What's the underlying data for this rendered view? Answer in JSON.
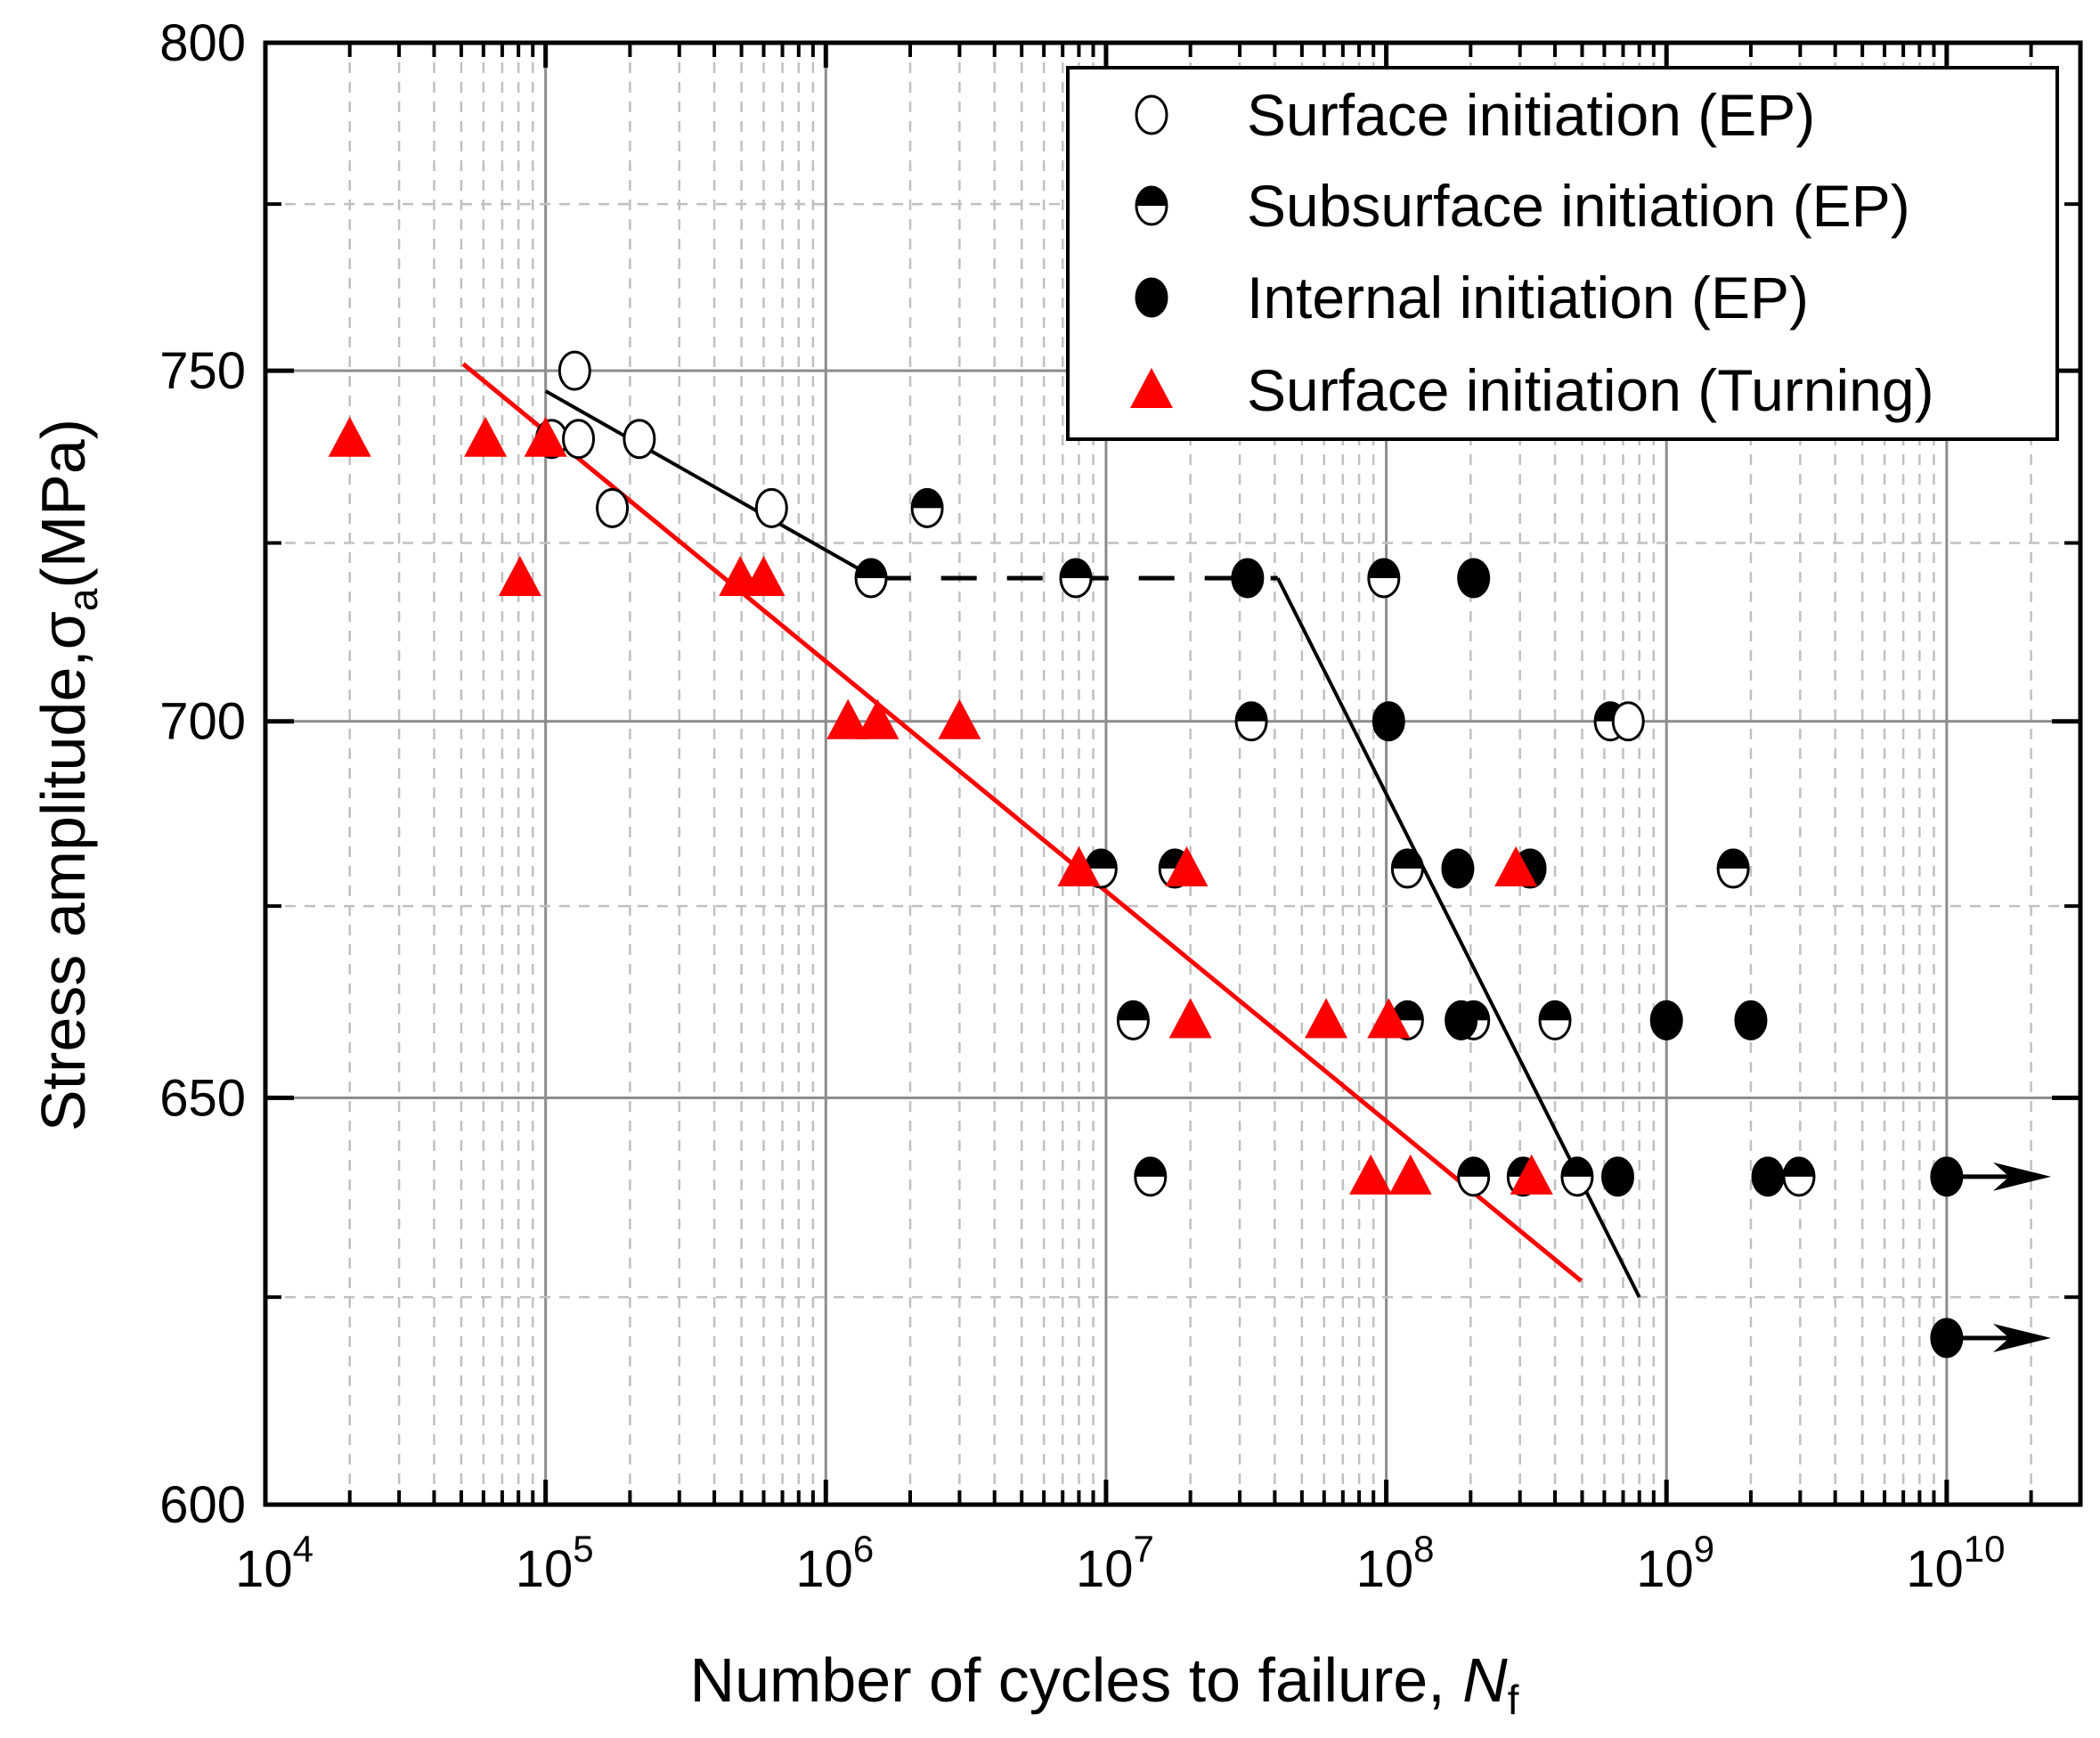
{
  "chart_data": {
    "type": "scatter",
    "title": "",
    "xlabel": "Number of cycles to failure, ",
    "xlabel_var": "N",
    "xlabel_sub": "f",
    "ylabel": "Stress amplitude,",
    "ylabel_sym": "σ",
    "ylabel_sub": "a",
    "ylabel_unit": "(MPa)",
    "xscale": "log",
    "yscale": "log",
    "xlim": [
      10000,
      30000000000
    ],
    "ylim": [
      600,
      800
    ],
    "x_ticks": [
      {
        "base": "10",
        "exp": "4",
        "value": 10000.0
      },
      {
        "base": "10",
        "exp": "5",
        "value": 100000.0
      },
      {
        "base": "10",
        "exp": "6",
        "value": 1000000.0
      },
      {
        "base": "10",
        "exp": "7",
        "value": 10000000.0
      },
      {
        "base": "10",
        "exp": "8",
        "value": 100000000.0
      },
      {
        "base": "10",
        "exp": "9",
        "value": 1000000000.0
      },
      {
        "base": "10",
        "exp": "10",
        "value": 10000000000.0
      }
    ],
    "y_ticks": [
      "600",
      "650",
      "700",
      "750",
      "800"
    ],
    "y_minor": [
      625,
      675,
      725,
      775
    ],
    "grid": true,
    "legend_position": "top-right",
    "colors": {
      "ep": "#000000",
      "turning": "#ff0000",
      "grid_major": "#8c8c8c",
      "grid_minor": "#c0c0c0"
    },
    "series": [
      {
        "name": "Surface initiation (EP)",
        "marker": "open-circle",
        "points": [
          [
            127000.0,
            750
          ],
          [
            105000.0,
            740
          ],
          [
            131000.0,
            740
          ],
          [
            216000.0,
            740
          ],
          [
            173000.0,
            730
          ],
          [
            640000.0,
            730
          ],
          [
            730000000.0,
            700
          ]
        ]
      },
      {
        "name": "Subsurface initiation (EP)",
        "marker": "half-filled-circle",
        "points": [
          [
            2300000.0,
            730
          ],
          [
            1450000.0,
            720
          ],
          [
            7800000.0,
            720
          ],
          [
            98000000.0,
            720
          ],
          [
            33000000.0,
            700
          ],
          [
            630000000.0,
            700
          ],
          [
            9600000.0,
            680
          ],
          [
            17600000.0,
            680
          ],
          [
            119000000.0,
            680
          ],
          [
            1730000000.0,
            680
          ],
          [
            12500000.0,
            660
          ],
          [
            119000000.0,
            660
          ],
          [
            205000000.0,
            660
          ],
          [
            400000000.0,
            660
          ],
          [
            14400000.0,
            640
          ],
          [
            205000000.0,
            640
          ],
          [
            308000000.0,
            640
          ],
          [
            480000000.0,
            640
          ],
          [
            2970000000.0,
            640
          ]
        ]
      },
      {
        "name": "Internal initiation (EP)",
        "marker": "filled-circle",
        "points": [
          [
            32000000.0,
            720
          ],
          [
            205000000.0,
            720
          ],
          [
            102000000.0,
            700
          ],
          [
            180000000.0,
            680
          ],
          [
            326000000.0,
            680
          ],
          [
            185000000.0,
            660
          ],
          [
            1000000000.0,
            660
          ],
          [
            2000000000.0,
            660
          ],
          [
            670000000.0,
            640
          ],
          [
            2300000000.0,
            640
          ],
          [
            10000000000.0,
            640
          ],
          [
            10000000000.0,
            620
          ]
        ],
        "runouts": [
          [
            10000000000.0,
            640
          ],
          [
            10000000000.0,
            620
          ]
        ]
      },
      {
        "name": "Surface initiation (Turning)",
        "marker": "red-triangle",
        "points": [
          [
            20000.0,
            740
          ],
          [
            61000.0,
            740
          ],
          [
            100000.0,
            740
          ],
          [
            81000.0,
            720
          ],
          [
            495000.0,
            720
          ],
          [
            600000.0,
            720
          ],
          [
            1200000.0,
            700
          ],
          [
            1530000.0,
            700
          ],
          [
            3000000.0,
            700
          ],
          [
            8000000.0,
            680
          ],
          [
            19400000.0,
            680
          ],
          [
            290000000.0,
            680
          ],
          [
            20000000.0,
            660
          ],
          [
            61000000.0,
            660
          ],
          [
            102000000.0,
            660
          ],
          [
            88000000.0,
            640
          ],
          [
            122000000.0,
            640
          ],
          [
            330000000.0,
            640
          ]
        ]
      }
    ],
    "fit_lines": [
      {
        "name": "EP surface fit",
        "color": "#000000",
        "style": "solid",
        "points": [
          [
            100000.0,
            747
          ],
          [
            1500000.0,
            720
          ]
        ]
      },
      {
        "name": "EP plateau",
        "color": "#000000",
        "style": "dashed",
        "points": [
          [
            1500000.0,
            720
          ],
          [
            41000000.0,
            720
          ]
        ]
      },
      {
        "name": "EP internal fit",
        "color": "#000000",
        "style": "solid",
        "points": [
          [
            41000000.0,
            720
          ],
          [
            800000000.0,
            625
          ]
        ]
      },
      {
        "name": "Turning fit",
        "color": "#ff0000",
        "style": "solid",
        "points": [
          [
            50800.0,
            751
          ],
          [
            496000000.0,
            627
          ]
        ]
      }
    ]
  }
}
